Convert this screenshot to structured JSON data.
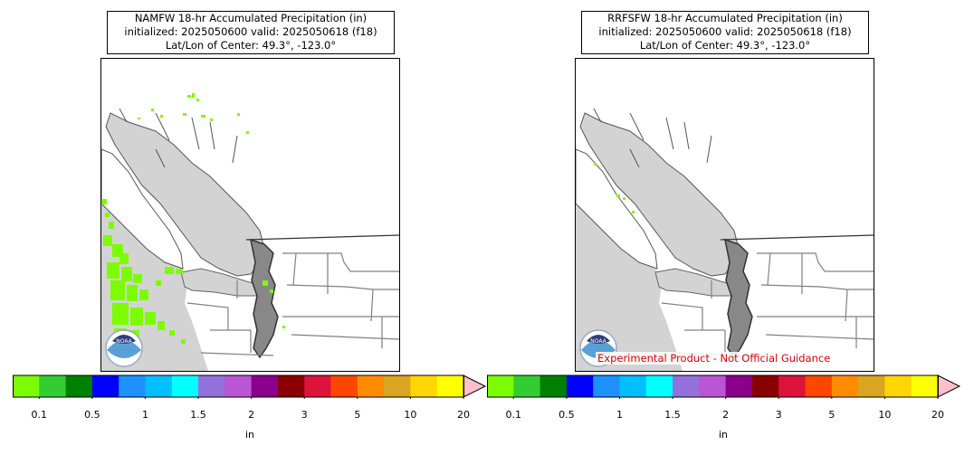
{
  "panels": [
    {
      "title_line1": "NAMFW 18-hr Accumulated Precipitation (in)",
      "title_line2": "initialized: 2025050600 valid: 2025050618 (f18)",
      "title_line3": "Lat/Lon of Center: 49.3°, -123.0°",
      "logo_text": "NOAA",
      "disclaimer": ""
    },
    {
      "title_line1": "RRFSFW 18-hr Accumulated Precipitation (in)",
      "title_line2": "initialized: 2025050600 valid: 2025050618 (f18)",
      "title_line3": "Lat/Lon of Center: 49.3°, -123.0°",
      "logo_text": "NOAA",
      "disclaimer": "Experimental Product - Not Official Guidance"
    }
  ],
  "colorbar": {
    "unit": "in",
    "tick_labels": [
      "0.1",
      "0.5",
      "1",
      "1.5",
      "2",
      "3",
      "5",
      "10",
      "20"
    ],
    "colors": [
      "#7cfc00",
      "#32cd32",
      "#008000",
      "#0000ff",
      "#1e90ff",
      "#00bfff",
      "#00ffff",
      "#9370db",
      "#ba55d3",
      "#8b008b",
      "#8b0000",
      "#dc143c",
      "#ff4500",
      "#ff8c00",
      "#daa520",
      "#ffd700",
      "#ffff00"
    ],
    "extend_color": "#ffc0cb"
  },
  "colors": {
    "water": "#d3d3d3",
    "land": "#ffffff",
    "precip_light": "#7cfc00",
    "border": "#808080"
  }
}
